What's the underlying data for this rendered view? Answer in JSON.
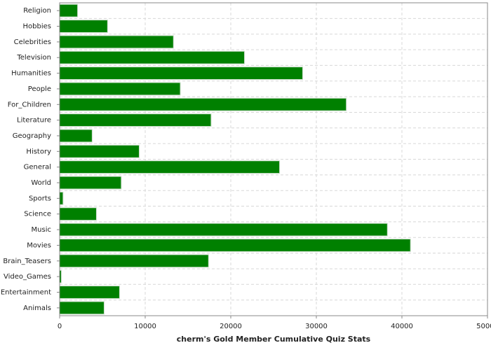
{
  "chart_data": {
    "type": "bar",
    "orientation": "horizontal",
    "x_label": "cherm's Gold Member Cumulative Quiz Stats",
    "categories": [
      "Religion",
      "Hobbies",
      "Celebrities",
      "Television",
      "Humanities",
      "People",
      "For_Children",
      "Literature",
      "Geography",
      "History",
      "General",
      "World",
      "Sports",
      "Science",
      "Music",
      "Movies",
      "Brain_Teasers",
      "Video_Games",
      "Entertainment",
      "Animals"
    ],
    "values": [
      2100,
      5600,
      13300,
      21600,
      28400,
      14100,
      33500,
      17700,
      3800,
      9300,
      25700,
      7200,
      400,
      4300,
      38300,
      41000,
      17400,
      200,
      7000,
      5200
    ],
    "color": "#008000",
    "xlim": [
      0,
      50000
    ],
    "xticks": [
      0,
      10000,
      20000,
      30000,
      40000,
      50000
    ],
    "grid": true
  }
}
